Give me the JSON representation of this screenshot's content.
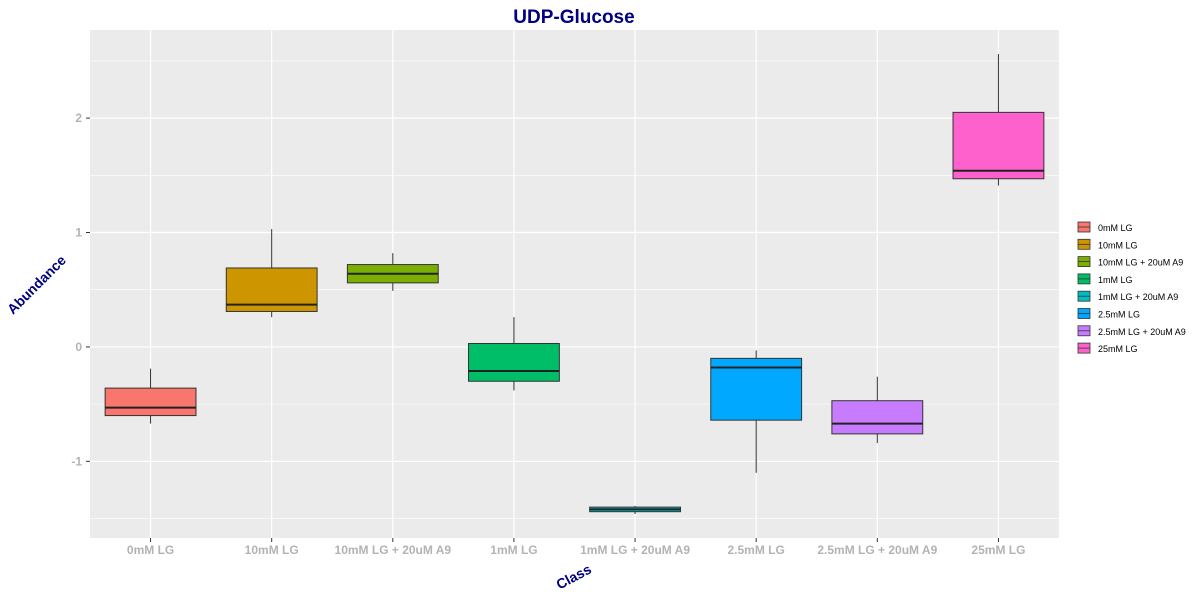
{
  "chart_data": {
    "type": "boxplot",
    "title": "UDP-Glucose",
    "xlabel": "Class",
    "ylabel": "Abundance",
    "ylim": [
      -1.67,
      2.77
    ],
    "yticks": [
      -1,
      0,
      1,
      2
    ],
    "yticks_labels": [
      "-1",
      "0",
      "1",
      "2"
    ],
    "grid": true,
    "legend_position": "right",
    "categories": [
      "0mM LG",
      "10mM LG",
      "10mM LG + 20uM A9",
      "1mM LG",
      "1mM LG + 20uM A9",
      "2.5mM LG",
      "2.5mM LG + 20uM A9",
      "25mM LG"
    ],
    "colors": [
      "#F8766D",
      "#CD9600",
      "#7CAE00",
      "#00BE67",
      "#00BFC4",
      "#00A9FF",
      "#C77CFF",
      "#FF61CC"
    ],
    "boxes": [
      {
        "min": -0.67,
        "q1": -0.6,
        "median": -0.53,
        "q3": -0.36,
        "max": -0.19
      },
      {
        "min": 0.26,
        "q1": 0.31,
        "median": 0.37,
        "q3": 0.69,
        "max": 1.03
      },
      {
        "min": 0.49,
        "q1": 0.56,
        "median": 0.64,
        "q3": 0.72,
        "max": 0.82
      },
      {
        "min": -0.38,
        "q1": -0.3,
        "median": -0.21,
        "q3": 0.03,
        "max": 0.26
      },
      {
        "min": -1.46,
        "q1": -1.44,
        "median": -1.42,
        "q3": -1.4,
        "max": -1.39
      },
      {
        "min": -1.1,
        "q1": -0.64,
        "median": -0.18,
        "q3": -0.1,
        "max": -0.03
      },
      {
        "min": -0.84,
        "q1": -0.76,
        "median": -0.67,
        "q3": -0.47,
        "max": -0.26
      },
      {
        "min": 1.41,
        "q1": 1.47,
        "median": 1.54,
        "q3": 2.05,
        "max": 2.56
      }
    ]
  }
}
